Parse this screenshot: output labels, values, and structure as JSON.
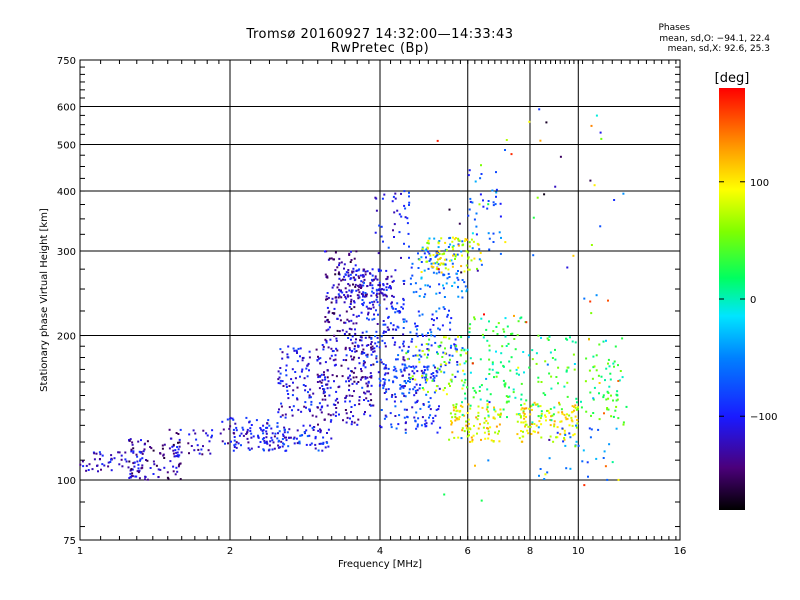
{
  "title": {
    "line1": "Tromsø 20160927 14:32:00—14:33:43",
    "line2": "RwPretec (Bp)"
  },
  "stats": {
    "heading": "Phases",
    "o_line": "mean, sd,O: −94.1, 22.4",
    "x_line": "mean, sd,X:  92.6, 25.3"
  },
  "colorbar": {
    "label": "[deg]",
    "ticks": [
      "100",
      "0",
      "−100"
    ],
    "tick_values": [
      100,
      0,
      -100
    ],
    "range": [
      -180,
      180
    ]
  },
  "chart_data": {
    "type": "scatter",
    "xlabel": "Frequency [MHz]",
    "ylabel": "Stationary phase Virtual Height [km]",
    "xscale": "log",
    "yscale": "log",
    "xlim": [
      1,
      16
    ],
    "ylim": [
      75,
      750
    ],
    "x_ticks": [
      1,
      2,
      4,
      6,
      8,
      10,
      16
    ],
    "x_tick_labels": [
      "1",
      "2",
      "4",
      "6",
      "8",
      "10",
      "16"
    ],
    "y_ticks": [
      75,
      100,
      200,
      300,
      400,
      500,
      600,
      750
    ],
    "y_tick_labels": [
      "75",
      "100",
      "200",
      "300",
      "400",
      "500",
      "600",
      "750"
    ],
    "grid": true,
    "color_by": "phase [deg]",
    "clusters": [
      {
        "f": [
          1.0,
          1.35
        ],
        "h": [
          104,
          115
        ],
        "phase": -115,
        "n": 60
      },
      {
        "f": [
          1.25,
          1.6
        ],
        "h": [
          100,
          122
        ],
        "phase": -130,
        "n": 90
      },
      {
        "f": [
          1.5,
          1.85
        ],
        "h": [
          112,
          128
        ],
        "phase": -120,
        "n": 40
      },
      {
        "f": [
          1.9,
          2.6
        ],
        "h": [
          115,
          135
        ],
        "phase": -110,
        "n": 90
      },
      {
        "f": [
          2.3,
          3.2
        ],
        "h": [
          115,
          130
        ],
        "phase": -95,
        "n": 90
      },
      {
        "f": [
          2.5,
          3.1
        ],
        "h": [
          135,
          190
        ],
        "phase": -112,
        "n": 110
      },
      {
        "f": [
          3.0,
          3.9
        ],
        "h": [
          130,
          200
        ],
        "phase": -120,
        "n": 200
      },
      {
        "f": [
          3.1,
          3.6
        ],
        "h": [
          200,
          300
        ],
        "phase": -130,
        "n": 120
      },
      {
        "f": [
          3.3,
          4.3
        ],
        "h": [
          240,
          275
        ],
        "phase": -115,
        "n": 120
      },
      {
        "f": [
          3.6,
          4.5
        ],
        "h": [
          150,
          260
        ],
        "phase": -100,
        "n": 160
      },
      {
        "f": [
          3.9,
          4.6
        ],
        "h": [
          290,
          400
        ],
        "phase": -105,
        "n": 40
      },
      {
        "f": [
          4.0,
          5.3
        ],
        "h": [
          125,
          175
        ],
        "phase": -90,
        "n": 140
      },
      {
        "f": [
          4.3,
          5.8
        ],
        "h": [
          160,
          230
        ],
        "phase": -80,
        "n": 120
      },
      {
        "f": [
          4.6,
          6.0
        ],
        "h": [
          240,
          320
        ],
        "phase": -60,
        "n": 100
      },
      {
        "f": [
          4.8,
          6.4
        ],
        "h": [
          270,
          320
        ],
        "phase": 90,
        "n": 80
      },
      {
        "f": [
          4.5,
          6.0
        ],
        "h": [
          150,
          200
        ],
        "phase": 60,
        "n": 60
      },
      {
        "f": [
          5.5,
          7.0
        ],
        "h": [
          120,
          145
        ],
        "phase": 95,
        "n": 100
      },
      {
        "f": [
          5.8,
          8.0
        ],
        "h": [
          135,
          220
        ],
        "phase": 20,
        "n": 120
      },
      {
        "f": [
          6.0,
          7.0
        ],
        "h": [
          280,
          470
        ],
        "phase": -70,
        "n": 40
      },
      {
        "f": [
          7.5,
          10.0
        ],
        "h": [
          120,
          145
        ],
        "phase": 95,
        "n": 110
      },
      {
        "f": [
          8.0,
          12.5
        ],
        "h": [
          130,
          200
        ],
        "phase": 30,
        "n": 120
      },
      {
        "f": [
          8.0,
          12.0
        ],
        "h": [
          100,
          130
        ],
        "phase": -60,
        "n": 30
      },
      {
        "f": [
          5.0,
          12.5
        ],
        "h": [
          90,
          600
        ],
        "phase": 0,
        "n": 80
      }
    ]
  }
}
